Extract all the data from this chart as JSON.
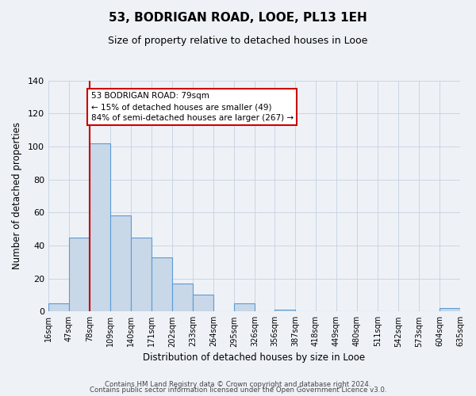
{
  "title": "53, BODRIGAN ROAD, LOOE, PL13 1EH",
  "subtitle": "Size of property relative to detached houses in Looe",
  "xlabel": "Distribution of detached houses by size in Looe",
  "ylabel": "Number of detached properties",
  "bin_edges": [
    16,
    47,
    78,
    109,
    140,
    171,
    202,
    233,
    264,
    295,
    326,
    356,
    387,
    418,
    449,
    480,
    511,
    542,
    573,
    604,
    635
  ],
  "bin_labels": [
    "16sqm",
    "47sqm",
    "78sqm",
    "109sqm",
    "140sqm",
    "171sqm",
    "202sqm",
    "233sqm",
    "264sqm",
    "295sqm",
    "326sqm",
    "356sqm",
    "387sqm",
    "418sqm",
    "449sqm",
    "480sqm",
    "511sqm",
    "542sqm",
    "573sqm",
    "604sqm",
    "635sqm"
  ],
  "counts": [
    5,
    45,
    102,
    58,
    45,
    33,
    17,
    10,
    0,
    5,
    0,
    1,
    0,
    0,
    0,
    0,
    0,
    0,
    0,
    2
  ],
  "bar_facecolor": "#c8d8e8",
  "bar_edgecolor": "#5b9bd5",
  "property_line_x": 78,
  "property_line_color": "#cc0000",
  "annotation_text": "53 BODRIGAN ROAD: 79sqm\n← 15% of detached houses are smaller (49)\n84% of semi-detached houses are larger (267) →",
  "annotation_box_edgecolor": "#cc0000",
  "annotation_box_facecolor": "#ffffff",
  "ylim": [
    0,
    140
  ],
  "yticks": [
    0,
    20,
    40,
    60,
    80,
    100,
    120,
    140
  ],
  "background_color": "#eef2f7",
  "grid_color": "#c5d0e0",
  "footer_line1": "Contains HM Land Registry data © Crown copyright and database right 2024.",
  "footer_line2": "Contains public sector information licensed under the Open Government Licence v3.0."
}
